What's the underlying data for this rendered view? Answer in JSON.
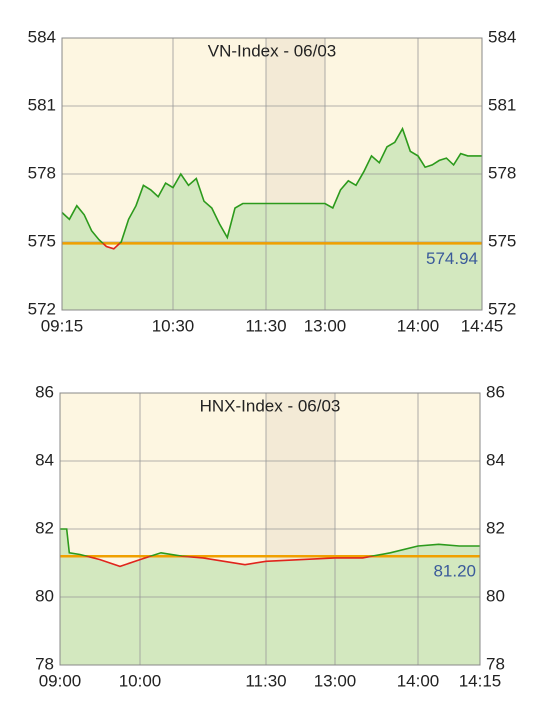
{
  "chart_data": [
    {
      "type": "line",
      "title": "VN-Index - 06/03",
      "x": [
        "09:15",
        "09:20",
        "09:25",
        "09:30",
        "09:35",
        "09:40",
        "09:45",
        "09:50",
        "09:55",
        "10:00",
        "10:05",
        "10:10",
        "10:15",
        "10:20",
        "10:25",
        "10:30",
        "10:35",
        "10:40",
        "10:45",
        "10:50",
        "10:55",
        "11:00",
        "11:05",
        "11:10",
        "11:15",
        "11:20",
        "11:25",
        "11:30",
        "13:00",
        "13:05",
        "13:10",
        "13:15",
        "13:20",
        "13:25",
        "13:30",
        "13:35",
        "13:40",
        "13:45",
        "13:50",
        "13:55",
        "14:00",
        "14:05",
        "14:10",
        "14:15",
        "14:20",
        "14:25",
        "14:30",
        "14:35",
        "14:45"
      ],
      "values": [
        576.3,
        576.0,
        576.6,
        576.2,
        575.5,
        575.1,
        574.8,
        574.7,
        575.0,
        576.0,
        576.6,
        577.5,
        577.3,
        577.0,
        577.6,
        577.4,
        578.0,
        577.5,
        577.8,
        576.8,
        576.5,
        575.8,
        575.2,
        576.5,
        576.7,
        576.7,
        576.7,
        576.7,
        576.7,
        576.5,
        577.3,
        577.7,
        577.5,
        578.1,
        578.8,
        578.5,
        579.2,
        579.4,
        580.0,
        579.0,
        578.8,
        578.3,
        578.4,
        578.6,
        578.7,
        578.4,
        578.9,
        578.8,
        578.8
      ],
      "color": "#2c9a1c",
      "below_color": "#e0241c",
      "fill_color": "#d3e8bf",
      "ref_color": "#f0a000",
      "reference": {
        "value": 574.94,
        "label": "574.94"
      },
      "ylim": [
        572,
        584
      ],
      "yticks": [
        572,
        575,
        578,
        581,
        584
      ],
      "xticks": [
        "09:15",
        "10:30",
        "11:30",
        "13:00",
        "14:00",
        "14:45"
      ],
      "shaded_range": [
        "11:30",
        "13:00"
      ],
      "grid": true
    },
    {
      "type": "line",
      "title": "HNX-Index - 06/03",
      "x": [
        "09:00",
        "09:05",
        "09:07",
        "09:15",
        "09:30",
        "09:45",
        "10:00",
        "10:15",
        "10:30",
        "10:45",
        "11:00",
        "11:15",
        "11:30",
        "13:00",
        "13:20",
        "13:40",
        "14:00",
        "14:05",
        "14:10",
        "14:15"
      ],
      "values": [
        82.0,
        82.0,
        81.3,
        81.25,
        81.1,
        80.9,
        81.1,
        81.3,
        81.2,
        81.15,
        81.05,
        80.95,
        81.05,
        81.15,
        81.15,
        81.3,
        81.5,
        81.55,
        81.5,
        81.5
      ],
      "color": "#2c9a1c",
      "below_color": "#e0241c",
      "fill_color": "#d3e8bf",
      "ref_color": "#f0a000",
      "reference": {
        "value": 81.2,
        "label": "81.20"
      },
      "ylim": [
        78,
        86
      ],
      "yticks": [
        78,
        80,
        82,
        84,
        86
      ],
      "xticks": [
        "09:00",
        "10:00",
        "11:30",
        "13:00",
        "14:00",
        "14:15"
      ],
      "shaded_range": [
        "11:30",
        "13:00"
      ],
      "grid": true
    }
  ]
}
